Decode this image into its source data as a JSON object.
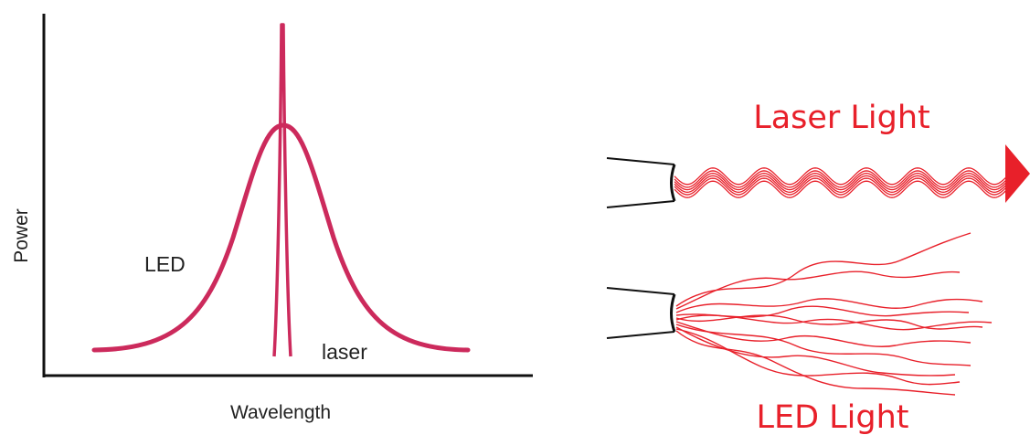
{
  "spectrum_plot": {
    "ylabel": "Power",
    "xlabel": "Wavelength",
    "led_label": "LED",
    "laser_label": "laser"
  },
  "beams": {
    "laser_title": "Laser Light",
    "led_title": "LED Light"
  },
  "colors": {
    "spectrum_curve": "#cc2a5c",
    "light_rays": "#e8202a",
    "axis": "#111111",
    "text": "#222222"
  }
}
